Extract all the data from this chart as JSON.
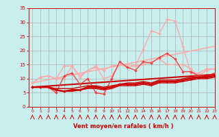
{
  "bg_color": "#c8eeed",
  "grid_color": "#b0b0b0",
  "xlabel": "Vent moyen/en rafales ( km/h )",
  "xlabel_color": "#cc0000",
  "tick_color": "#cc0000",
  "xlim": [
    -0.5,
    23
  ],
  "ylim": [
    0,
    35
  ],
  "yticks": [
    0,
    5,
    10,
    15,
    20,
    25,
    30,
    35
  ],
  "xticks": [
    0,
    1,
    2,
    3,
    4,
    5,
    6,
    7,
    8,
    9,
    10,
    11,
    12,
    13,
    14,
    15,
    16,
    17,
    18,
    19,
    20,
    21,
    22,
    23
  ],
  "series": [
    {
      "comment": "light pink top line - peaks at 31-32 around x=17",
      "x": [
        0,
        1,
        2,
        3,
        4,
        5,
        6,
        7,
        8,
        9,
        10,
        11,
        12,
        13,
        14,
        15,
        16,
        17,
        18,
        19,
        20,
        21,
        22,
        23
      ],
      "y": [
        8.5,
        10.5,
        11,
        10,
        10,
        14.5,
        10.5,
        13,
        14.5,
        10,
        11,
        15,
        14,
        14.5,
        20.5,
        27,
        26,
        31,
        30.5,
        21.5,
        12,
        12,
        13.5,
        13.5
      ],
      "color": "#ffaaaa",
      "lw": 1.0,
      "marker": "D",
      "ms": 2.0,
      "zorder": 2
    },
    {
      "comment": "medium pink line",
      "x": [
        0,
        1,
        2,
        3,
        4,
        5,
        6,
        7,
        8,
        9,
        10,
        11,
        12,
        13,
        14,
        15,
        16,
        17,
        18,
        19,
        20,
        21,
        22,
        23
      ],
      "y": [
        8.5,
        10.5,
        11,
        10,
        14.5,
        14.5,
        11,
        13,
        14,
        13,
        14.5,
        15,
        15,
        14.5,
        15,
        16,
        17,
        15,
        15,
        15,
        13.5,
        11,
        13,
        13.5
      ],
      "color": "#ffaaaa",
      "lw": 1.0,
      "marker": "D",
      "ms": 2.0,
      "zorder": 2
    },
    {
      "comment": "bright diagonal regression line",
      "x": [
        0,
        23
      ],
      "y": [
        8.5,
        21.5
      ],
      "color": "#ffaaaa",
      "lw": 1.2,
      "marker": null,
      "ms": 0,
      "zorder": 2
    },
    {
      "comment": "red medium line - peaks around x=17 at ~19",
      "x": [
        0,
        1,
        2,
        3,
        4,
        5,
        6,
        7,
        8,
        9,
        10,
        11,
        12,
        13,
        14,
        15,
        16,
        17,
        18,
        19,
        20,
        21,
        22,
        23
      ],
      "y": [
        7,
        7,
        7,
        5,
        11,
        12,
        8,
        10,
        5,
        4.5,
        10,
        16,
        14,
        13,
        16,
        15.5,
        17.5,
        19,
        17,
        12.5,
        12.5,
        11,
        11,
        12
      ],
      "color": "#ee4444",
      "lw": 1.0,
      "marker": "D",
      "ms": 2.0,
      "zorder": 3
    },
    {
      "comment": "tight cluster lower red line 1",
      "x": [
        0,
        1,
        2,
        3,
        4,
        5,
        6,
        7,
        8,
        9,
        10,
        11,
        12,
        13,
        14,
        15,
        16,
        17,
        18,
        19,
        20,
        21,
        22,
        23
      ],
      "y": [
        7,
        7,
        7,
        6.5,
        6.5,
        6.5,
        7,
        7.5,
        7.5,
        7,
        7.5,
        8,
        8.5,
        8.5,
        9,
        8.5,
        9.5,
        9.5,
        9.5,
        10,
        10.5,
        10.5,
        11,
        11.5
      ],
      "color": "#cc0000",
      "lw": 1.0,
      "marker": null,
      "ms": 0,
      "zorder": 3
    },
    {
      "comment": "tight cluster lower red line 2",
      "x": [
        0,
        1,
        2,
        3,
        4,
        5,
        6,
        7,
        8,
        9,
        10,
        11,
        12,
        13,
        14,
        15,
        16,
        17,
        18,
        19,
        20,
        21,
        22,
        23
      ],
      "y": [
        7,
        7,
        7,
        6,
        5.5,
        5.5,
        6,
        6.5,
        6.5,
        6,
        6.5,
        7.5,
        7.5,
        7.5,
        8,
        7.5,
        8.5,
        8.5,
        8.5,
        9,
        9.5,
        10,
        10,
        10.5
      ],
      "color": "#cc0000",
      "lw": 1.0,
      "marker": null,
      "ms": 0,
      "zorder": 3
    },
    {
      "comment": "main thick red line with markers - slow increase",
      "x": [
        0,
        1,
        2,
        3,
        4,
        5,
        6,
        7,
        8,
        9,
        10,
        11,
        12,
        13,
        14,
        15,
        16,
        17,
        18,
        19,
        20,
        21,
        22,
        23
      ],
      "y": [
        7,
        7,
        7,
        6,
        5.5,
        6,
        6,
        7,
        7,
        6.5,
        7,
        8,
        8,
        8,
        8.5,
        8,
        9,
        9,
        9,
        9.5,
        10,
        10.5,
        10.5,
        11
      ],
      "color": "#cc0000",
      "lw": 1.8,
      "marker": "D",
      "ms": 2.0,
      "zorder": 4
    },
    {
      "comment": "linear regression red",
      "x": [
        0,
        23
      ],
      "y": [
        7,
        11.5
      ],
      "color": "#cc0000",
      "lw": 1.5,
      "marker": null,
      "ms": 0,
      "zorder": 2
    }
  ],
  "wind_arrows": {
    "color": "#cc0000",
    "x_vals": [
      0,
      1,
      2,
      3,
      4,
      5,
      6,
      7,
      8,
      9,
      10,
      11,
      12,
      13,
      14,
      15,
      16,
      17,
      18,
      19,
      20,
      21,
      22,
      23
    ]
  }
}
